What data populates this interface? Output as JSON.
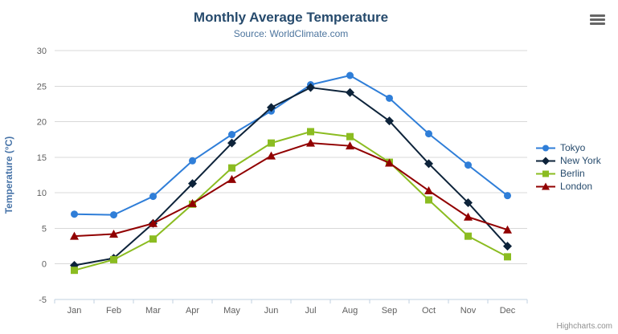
{
  "credits": {
    "text": "Highcharts.com"
  },
  "icons": {
    "export_menu": "hamburger-icon"
  },
  "theme": {
    "background": "#ffffff",
    "title_color": "#274b6d",
    "subtitle_color": "#4d759e",
    "axis_title_color": "#4572a7",
    "tick_label_color": "#606060",
    "grid_color": "#d8d8d8",
    "axis_line_color": "#c0d0e0",
    "legend_text_color": "#274b6d",
    "credits_color": "#909090"
  },
  "chart_data": {
    "type": "line",
    "title": "Monthly Average Temperature",
    "subtitle": "Source: WorldClimate.com",
    "categories": [
      "Jan",
      "Feb",
      "Mar",
      "Apr",
      "May",
      "Jun",
      "Jul",
      "Aug",
      "Sep",
      "Oct",
      "Nov",
      "Dec"
    ],
    "series": [
      {
        "name": "Tokyo",
        "color": "#2f7ed8",
        "marker": "circle",
        "values": [
          7.0,
          6.9,
          9.5,
          14.5,
          18.2,
          21.5,
          25.2,
          26.5,
          23.3,
          18.3,
          13.9,
          9.6
        ]
      },
      {
        "name": "New York",
        "color": "#0d233a",
        "marker": "diamond",
        "values": [
          -0.2,
          0.8,
          5.7,
          11.3,
          17.0,
          22.0,
          24.8,
          24.1,
          20.1,
          14.1,
          8.6,
          2.5
        ]
      },
      {
        "name": "Berlin",
        "color": "#8bbc21",
        "marker": "square",
        "values": [
          -0.9,
          0.6,
          3.5,
          8.4,
          13.5,
          17.0,
          18.6,
          17.9,
          14.3,
          9.0,
          3.9,
          1.0
        ]
      },
      {
        "name": "London",
        "color": "#910000",
        "marker": "triangle",
        "values": [
          3.9,
          4.2,
          5.7,
          8.5,
          11.9,
          15.2,
          17.0,
          16.6,
          14.2,
          10.3,
          6.6,
          4.8
        ]
      }
    ],
    "xlabel": "",
    "ylabel": "Temperature (°C)",
    "ylim": [
      -5,
      30
    ],
    "yticks": [
      -5,
      0,
      5,
      10,
      15,
      20,
      25,
      30
    ],
    "grid": true,
    "legend_position": "right"
  }
}
